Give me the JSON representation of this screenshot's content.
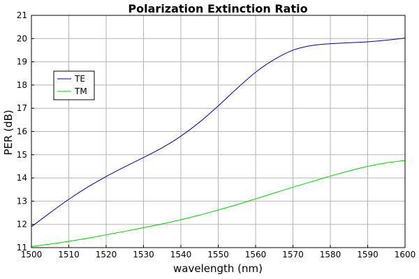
{
  "chart_data": {
    "type": "line",
    "title": "Polarization Extinction Ratio",
    "xlabel": "wavelength (nm)",
    "ylabel": "PER (dB)",
    "xlim": [
      1500,
      1600
    ],
    "ylim": [
      11,
      21
    ],
    "x_ticks": [
      1500,
      1510,
      1520,
      1530,
      1540,
      1550,
      1560,
      1570,
      1580,
      1590,
      1600
    ],
    "y_ticks": [
      11,
      12,
      13,
      14,
      15,
      16,
      17,
      18,
      19,
      20,
      21
    ],
    "grid": true,
    "legend_position": "upper-left",
    "x": [
      1500,
      1505,
      1510,
      1515,
      1520,
      1525,
      1530,
      1535,
      1540,
      1545,
      1550,
      1555,
      1560,
      1565,
      1570,
      1575,
      1580,
      1585,
      1590,
      1595,
      1600
    ],
    "series": [
      {
        "name": "TE",
        "color": "#00008b",
        "values": [
          11.9,
          12.5,
          13.08,
          13.6,
          14.06,
          14.48,
          14.88,
          15.3,
          15.8,
          16.4,
          17.1,
          17.85,
          18.55,
          19.1,
          19.5,
          19.7,
          19.78,
          19.82,
          19.86,
          19.93,
          20.02
        ]
      },
      {
        "name": "TM",
        "color": "#00cc00",
        "values": [
          11.05,
          11.15,
          11.27,
          11.4,
          11.55,
          11.7,
          11.86,
          12.02,
          12.2,
          12.4,
          12.62,
          12.85,
          13.1,
          13.35,
          13.6,
          13.84,
          14.08,
          14.3,
          14.5,
          14.65,
          14.75
        ]
      }
    ]
  }
}
